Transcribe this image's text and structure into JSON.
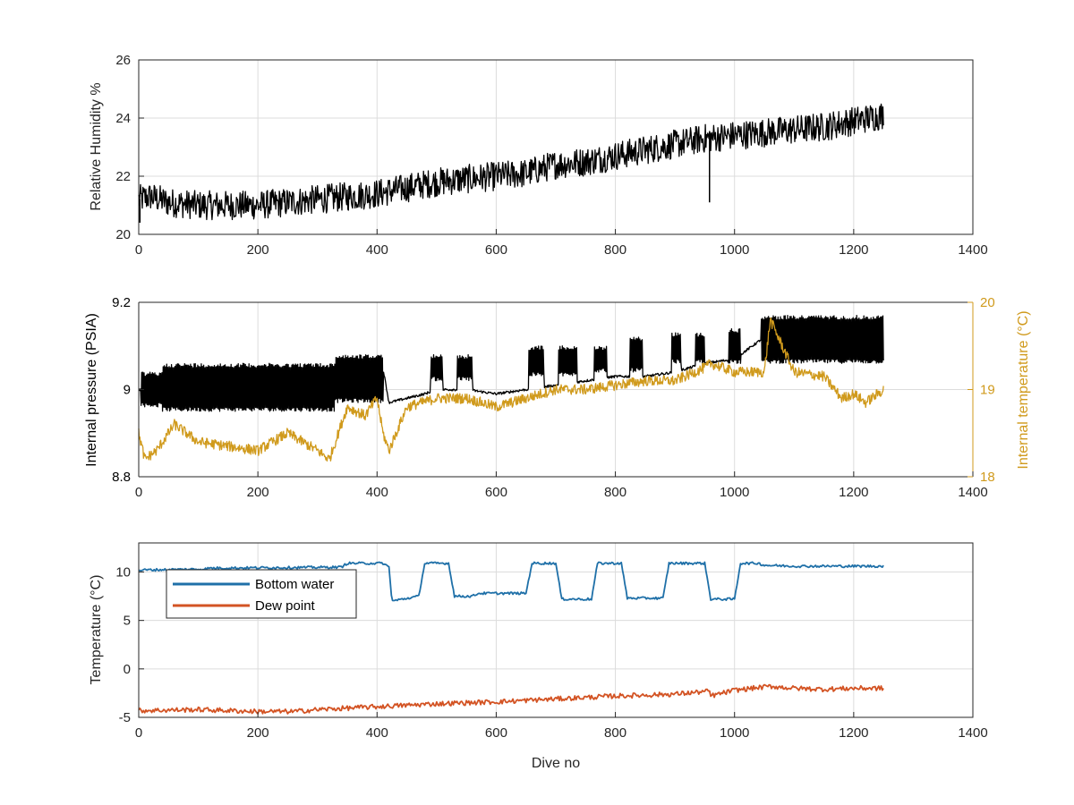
{
  "colors": {
    "black_series": "#000000",
    "internal_temperature": "#d09a1c",
    "bottom_water": "#1f70a8",
    "dew_point": "#d35323",
    "grid": "#dcdcdc",
    "axes": "#262626"
  },
  "chart_data": [
    {
      "type": "line",
      "xlabel": "",
      "ylabel": "Relative Humidity %",
      "xlim": [
        0,
        1400
      ],
      "ylim": [
        20,
        26
      ],
      "xticks": [
        "0",
        "200",
        "400",
        "600",
        "800",
        "1000",
        "1200",
        "1400"
      ],
      "yticks": [
        "20",
        "22",
        "24",
        "26"
      ],
      "grid": true,
      "series": [
        {
          "color": "#000000",
          "x": [
            0,
            20,
            50,
            100,
            150,
            200,
            250,
            300,
            350,
            400,
            450,
            500,
            550,
            600,
            650,
            700,
            750,
            800,
            850,
            900,
            950,
            1000,
            1050,
            1100,
            1150,
            1200,
            1250
          ],
          "y": [
            21.2,
            21.3,
            21.1,
            21.0,
            21.0,
            21.0,
            21.1,
            21.2,
            21.3,
            21.4,
            21.6,
            21.8,
            21.9,
            22.0,
            22.1,
            22.4,
            22.5,
            22.7,
            22.9,
            23.1,
            23.3,
            23.4,
            23.5,
            23.6,
            23.7,
            23.9,
            24.1
          ],
          "spikes": [
            {
              "x": 958,
              "y": 21.1
            },
            {
              "x": 2,
              "y": 20.4
            }
          ]
        }
      ]
    },
    {
      "type": "line",
      "xlabel": "",
      "ylabel": "Internal pressure (PSIA)",
      "ylabel_right": "Internal temperature (°C)",
      "xlim": [
        0,
        1400
      ],
      "ylim": [
        8.8,
        9.2
      ],
      "ylim_right": [
        18,
        20
      ],
      "xticks": [
        "0",
        "200",
        "400",
        "600",
        "800",
        "1000",
        "1200",
        "1400"
      ],
      "yticks": [
        "8.8",
        "9",
        "9.2"
      ],
      "yticks_right": [
        "18",
        "19",
        "20"
      ],
      "grid": true,
      "series": [
        {
          "axis": "left",
          "color": "#000000",
          "x": [
            0,
            50,
            100,
            150,
            200,
            250,
            300,
            350,
            380,
            410,
            420,
            450,
            480,
            500,
            550,
            600,
            650,
            700,
            750,
            800,
            850,
            900,
            950,
            1000,
            1050,
            1100,
            1150,
            1200,
            1250
          ],
          "y": [
            9.0,
            9.01,
            9.02,
            9.02,
            9.02,
            9.01,
            9.0,
            8.99,
            9.04,
            9.05,
            8.97,
            8.98,
            8.99,
            9.0,
            9.0,
            8.99,
            9.0,
            9.01,
            9.02,
            9.03,
            9.03,
            9.04,
            9.06,
            9.07,
            9.12,
            9.11,
            9.1,
            9.1,
            9.1
          ],
          "bursts": [
            [
              4,
              40,
              8.96,
              9.04
            ],
            [
              40,
              330,
              8.95,
              9.06
            ],
            [
              330,
              410,
              8.97,
              9.08
            ],
            [
              490,
              510,
              9.02,
              9.08
            ],
            [
              535,
              560,
              9.02,
              9.08
            ],
            [
              655,
              680,
              9.03,
              9.1
            ],
            [
              705,
              735,
              9.03,
              9.1
            ],
            [
              765,
              785,
              9.04,
              9.1
            ],
            [
              825,
              845,
              9.04,
              9.12
            ],
            [
              895,
              910,
              9.06,
              9.13
            ],
            [
              935,
              950,
              9.06,
              9.13
            ],
            [
              990,
              1010,
              9.06,
              9.14
            ],
            [
              1045,
              1250,
              9.06,
              9.17
            ]
          ]
        },
        {
          "axis": "right",
          "name": "",
          "color": "#d09a1c",
          "x": [
            0,
            10,
            30,
            60,
            80,
            100,
            150,
            200,
            250,
            300,
            320,
            350,
            380,
            400,
            410,
            420,
            450,
            500,
            550,
            600,
            650,
            700,
            750,
            800,
            850,
            900,
            950,
            960,
            1000,
            1050,
            1060,
            1100,
            1150,
            1180,
            1200,
            1220,
            1250
          ],
          "y": [
            18.5,
            18.2,
            18.3,
            18.6,
            18.5,
            18.4,
            18.35,
            18.3,
            18.5,
            18.3,
            18.2,
            18.8,
            18.7,
            18.9,
            18.5,
            18.3,
            18.8,
            18.9,
            18.9,
            18.8,
            18.9,
            19.0,
            19.0,
            19.05,
            19.1,
            19.1,
            19.25,
            19.3,
            19.2,
            19.2,
            19.8,
            19.2,
            19.15,
            18.9,
            18.95,
            18.85,
            19.0
          ]
        }
      ]
    },
    {
      "type": "line",
      "xlabel": "Dive no",
      "ylabel": "Temperature (°C)",
      "xlim": [
        0,
        1400
      ],
      "ylim": [
        -5,
        13
      ],
      "xticks": [
        "0",
        "200",
        "400",
        "600",
        "800",
        "1000",
        "1200",
        "1400"
      ],
      "yticks": [
        "-5",
        "0",
        "5",
        "10"
      ],
      "grid": true,
      "legend": "upper-left",
      "series": [
        {
          "name": "Bottom water",
          "color": "#1f70a8",
          "x": [
            0,
            110,
            120,
            340,
            350,
            400,
            410,
            420,
            425,
            470,
            480,
            520,
            530,
            560,
            570,
            650,
            660,
            700,
            710,
            760,
            770,
            810,
            820,
            880,
            890,
            950,
            960,
            1000,
            1010,
            1040,
            1050,
            1100,
            1250
          ],
          "y": [
            10.2,
            10.3,
            10.4,
            10.5,
            10.9,
            10.9,
            10.9,
            10.5,
            7.0,
            7.5,
            10.9,
            10.9,
            7.5,
            7.5,
            7.8,
            7.8,
            10.9,
            10.9,
            7.2,
            7.2,
            10.9,
            10.9,
            7.3,
            7.3,
            10.9,
            10.9,
            7.2,
            7.2,
            10.9,
            10.9,
            10.7,
            10.6,
            10.6
          ]
        },
        {
          "name": "Dew point",
          "color": "#d35323",
          "x": [
            0,
            100,
            200,
            260,
            300,
            400,
            500,
            600,
            700,
            800,
            900,
            958,
            960,
            1000,
            1060,
            1100,
            1150,
            1200,
            1250
          ],
          "y": [
            -4.3,
            -4.2,
            -4.4,
            -4.4,
            -4.2,
            -3.9,
            -3.6,
            -3.4,
            -3.1,
            -2.8,
            -2.6,
            -2.3,
            -2.8,
            -2.2,
            -1.8,
            -2.0,
            -2.1,
            -2.0,
            -2.0
          ]
        }
      ]
    }
  ]
}
